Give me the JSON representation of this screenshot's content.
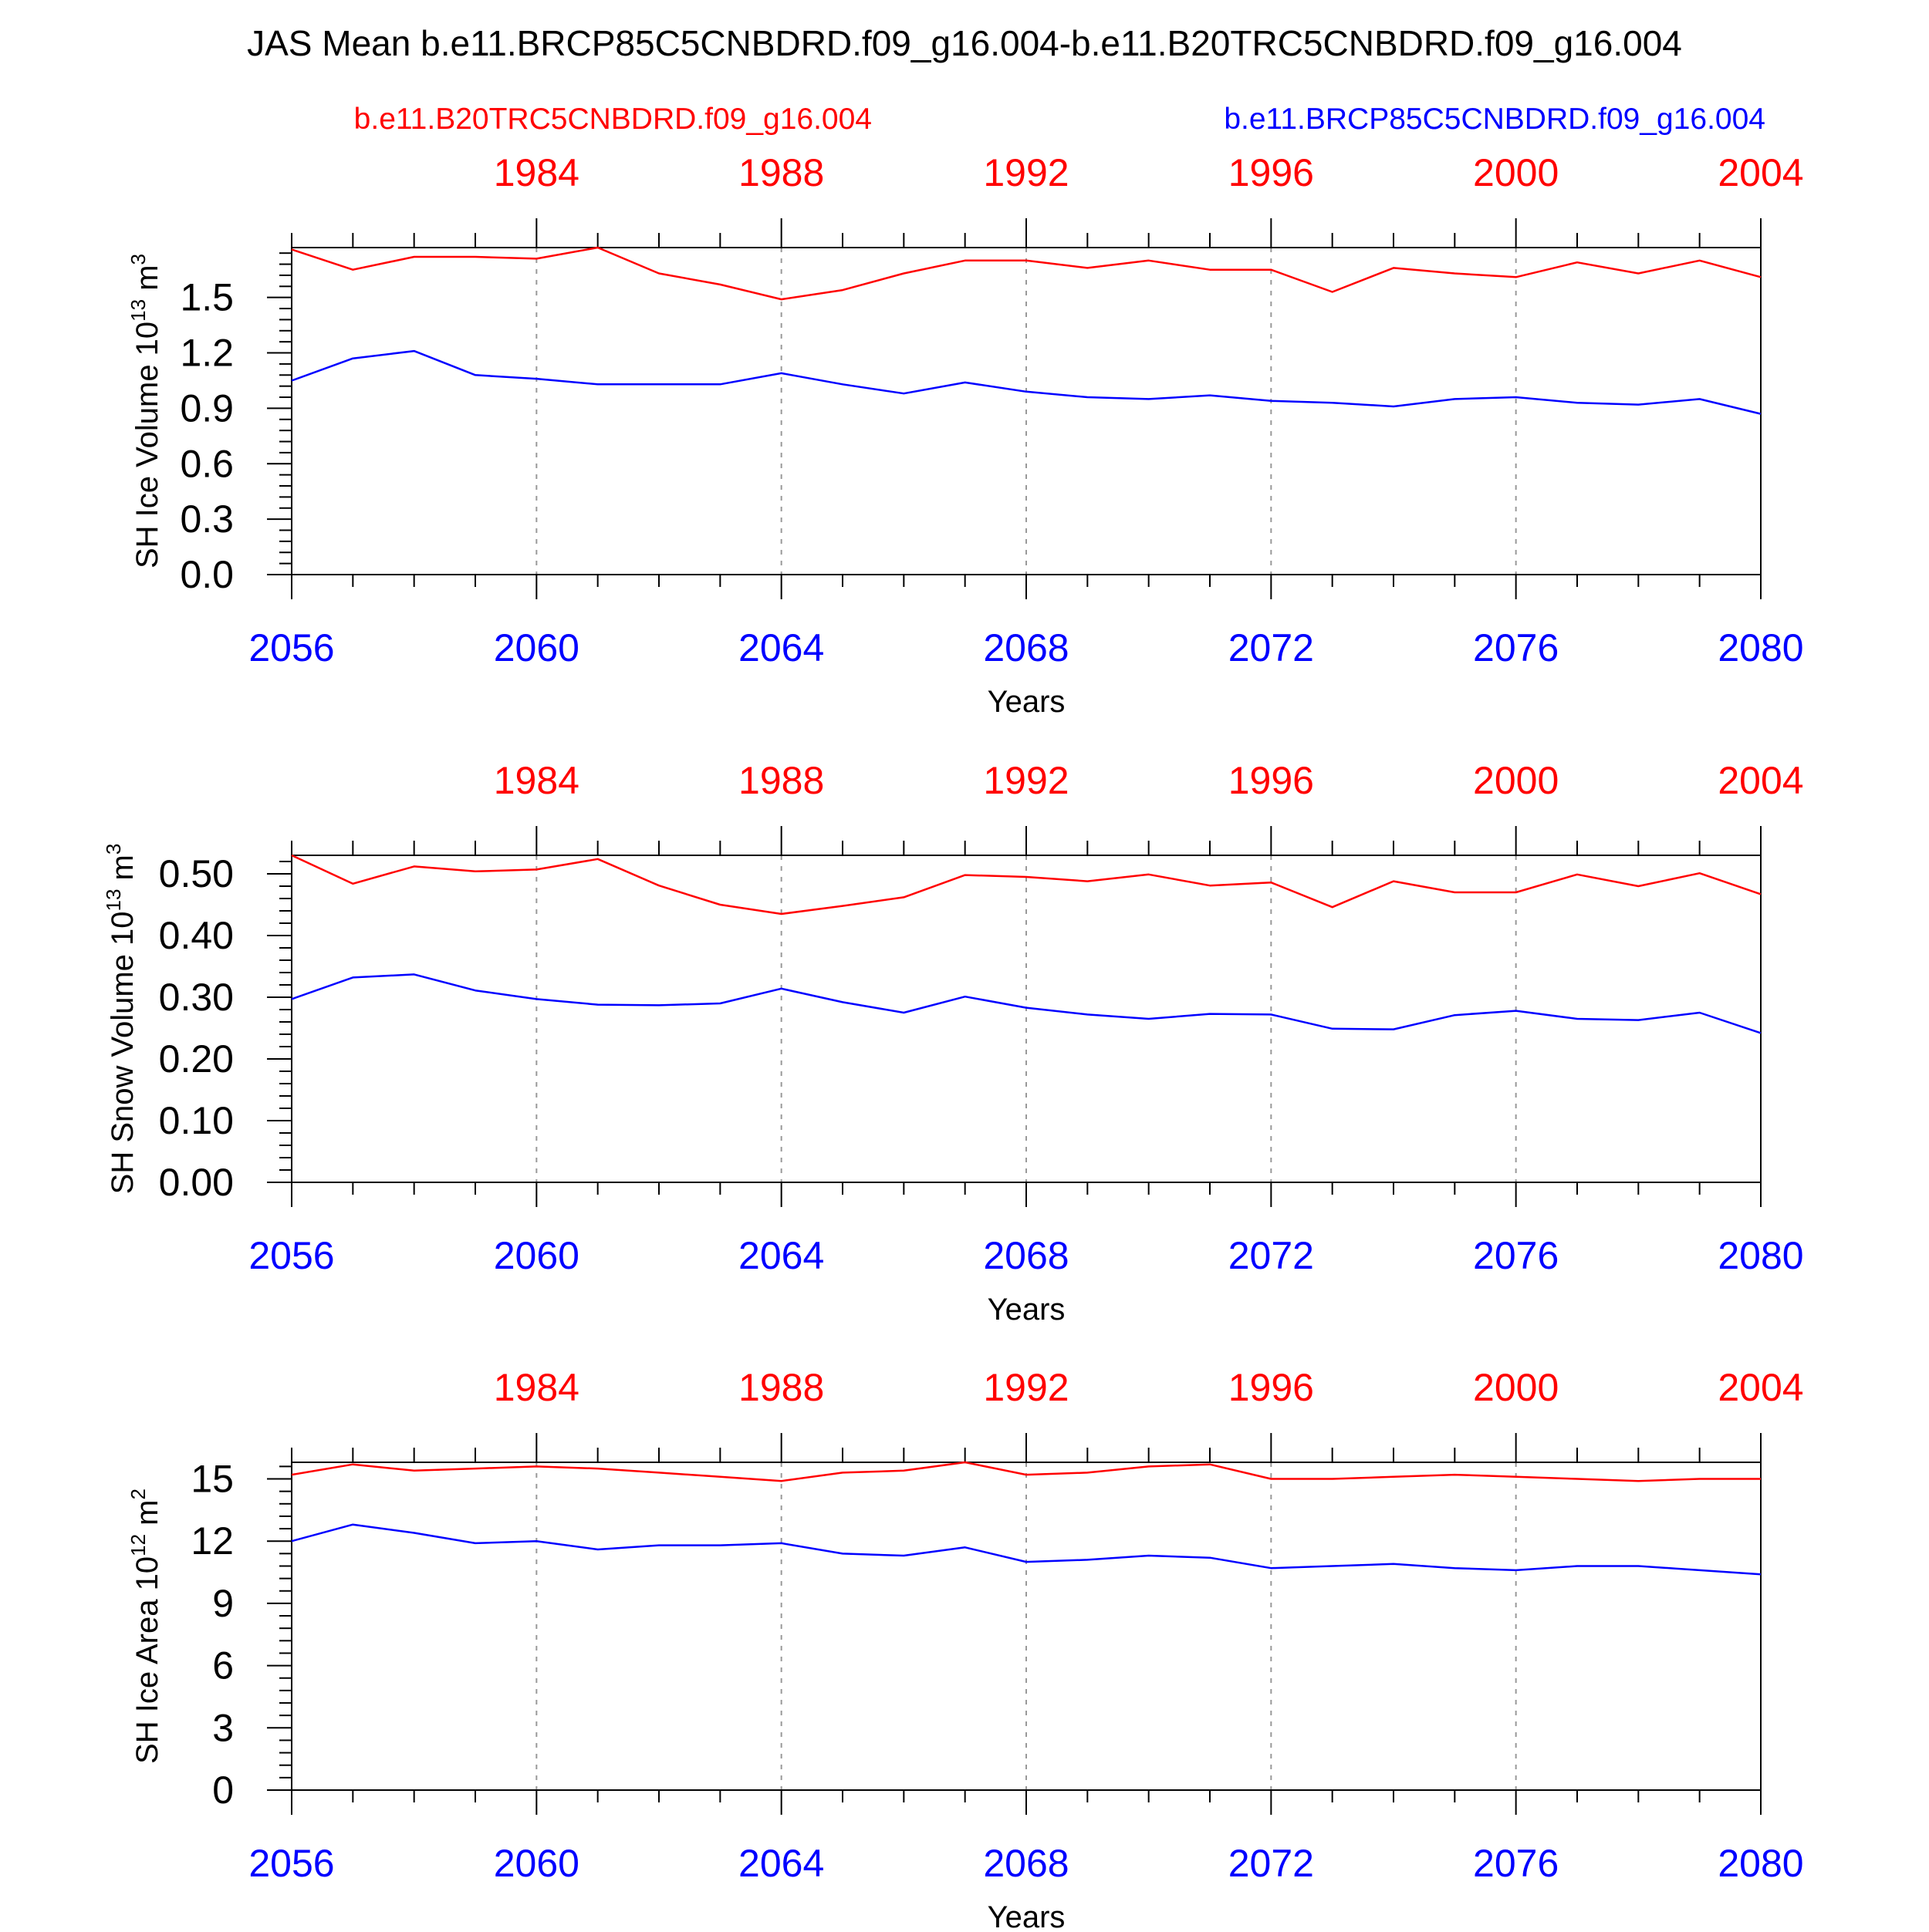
{
  "title": "JAS Mean b.e11.BRCP85C5CNBDRD.f09_g16.004-b.e11.B20TRC5CNBDRD.f09_g16.004",
  "legend": {
    "left": "b.e11.B20TRC5CNBDRD.f09_g16.004",
    "right": "b.e11.BRCP85C5CNBDRD.f09_g16.004"
  },
  "colors": {
    "historical": "#ff0000",
    "projection": "#0000ff",
    "frame": "#000000",
    "grid": "#999999"
  },
  "chart_data": [
    {
      "type": "line",
      "ylabel": "SH Ice Volume 10",
      "ylabel_exp": "13",
      "ylabel_unit": " m",
      "ylabel_unit_exp": "3",
      "xlabel": "Years",
      "ylim": [
        0,
        1.77
      ],
      "yticks": [
        "0.0",
        "0.3",
        "0.6",
        "0.9",
        "1.2",
        "1.5"
      ],
      "ytick_values": [
        0,
        0.3,
        0.6,
        0.9,
        1.2,
        1.5
      ],
      "x_bottom": [
        2056,
        2057,
        2058,
        2059,
        2060,
        2061,
        2062,
        2063,
        2064,
        2065,
        2066,
        2067,
        2068,
        2069,
        2070,
        2071,
        2072,
        2073,
        2074,
        2075,
        2076,
        2077,
        2078,
        2079,
        2080
      ],
      "x_bottom_ticks": [
        "2056",
        "2060",
        "2064",
        "2068",
        "2072",
        "2076",
        "2080"
      ],
      "x_top_ticks": [
        "1984",
        "1988",
        "1992",
        "1996",
        "2000",
        "2004"
      ],
      "series": [
        {
          "values": [
            1.76,
            1.65,
            1.72,
            1.72,
            1.71,
            1.77,
            1.63,
            1.57,
            1.49,
            1.54,
            1.63,
            1.7,
            1.7,
            1.66,
            1.7,
            1.65,
            1.65,
            1.53,
            1.66,
            1.63,
            1.61,
            1.69,
            1.63,
            1.7,
            1.61
          ]
        },
        {
          "values": [
            1.05,
            1.17,
            1.21,
            1.08,
            1.06,
            1.03,
            1.03,
            1.03,
            1.09,
            1.03,
            0.98,
            1.04,
            0.99,
            0.96,
            0.95,
            0.97,
            0.94,
            0.93,
            0.91,
            0.95,
            0.96,
            0.93,
            0.92,
            0.95,
            0.87
          ]
        }
      ]
    },
    {
      "type": "line",
      "ylabel": "SH Snow Volume 10",
      "ylabel_exp": "13",
      "ylabel_unit": " m",
      "ylabel_unit_exp": "3",
      "xlabel": "Years",
      "ylim": [
        0,
        0.53
      ],
      "yticks": [
        "0.00",
        "0.10",
        "0.20",
        "0.30",
        "0.40",
        "0.50"
      ],
      "ytick_values": [
        0,
        0.1,
        0.2,
        0.3,
        0.4,
        0.5
      ],
      "x_bottom": [
        2056,
        2057,
        2058,
        2059,
        2060,
        2061,
        2062,
        2063,
        2064,
        2065,
        2066,
        2067,
        2068,
        2069,
        2070,
        2071,
        2072,
        2073,
        2074,
        2075,
        2076,
        2077,
        2078,
        2079,
        2080
      ],
      "x_bottom_ticks": [
        "2056",
        "2060",
        "2064",
        "2068",
        "2072",
        "2076",
        "2080"
      ],
      "x_top_ticks": [
        "1984",
        "1988",
        "1992",
        "1996",
        "2000",
        "2004"
      ],
      "series": [
        {
          "values": [
            0.53,
            0.484,
            0.512,
            0.504,
            0.507,
            0.524,
            0.481,
            0.45,
            0.435,
            0.448,
            0.462,
            0.498,
            0.495,
            0.488,
            0.499,
            0.481,
            0.486,
            0.446,
            0.488,
            0.47,
            0.47,
            0.499,
            0.48,
            0.501,
            0.467
          ]
        },
        {
          "values": [
            0.297,
            0.332,
            0.337,
            0.311,
            0.297,
            0.288,
            0.287,
            0.29,
            0.314,
            0.292,
            0.275,
            0.301,
            0.283,
            0.272,
            0.265,
            0.273,
            0.272,
            0.249,
            0.248,
            0.271,
            0.278,
            0.265,
            0.263,
            0.275,
            0.242
          ]
        }
      ]
    },
    {
      "type": "line",
      "ylabel": "SH Ice Area 10",
      "ylabel_exp": "12",
      "ylabel_unit": " m",
      "ylabel_unit_exp": "2",
      "xlabel": "Years",
      "ylim": [
        0,
        15.8
      ],
      "yticks": [
        "0",
        "3",
        "6",
        "9",
        "12",
        "15"
      ],
      "ytick_values": [
        0,
        3,
        6,
        9,
        12,
        15
      ],
      "x_bottom": [
        2056,
        2057,
        2058,
        2059,
        2060,
        2061,
        2062,
        2063,
        2064,
        2065,
        2066,
        2067,
        2068,
        2069,
        2070,
        2071,
        2072,
        2073,
        2074,
        2075,
        2076,
        2077,
        2078,
        2079,
        2080
      ],
      "x_bottom_ticks": [
        "2056",
        "2060",
        "2064",
        "2068",
        "2072",
        "2076",
        "2080"
      ],
      "x_top_ticks": [
        "1984",
        "1988",
        "1992",
        "1996",
        "2000",
        "2004"
      ],
      "series": [
        {
          "values": [
            15.2,
            15.7,
            15.4,
            15.5,
            15.6,
            15.5,
            15.3,
            15.1,
            14.9,
            15.3,
            15.4,
            15.8,
            15.2,
            15.3,
            15.6,
            15.7,
            15.0,
            15.0,
            15.1,
            15.2,
            15.1,
            15.0,
            14.9,
            15.0,
            15.0
          ]
        },
        {
          "values": [
            12.0,
            12.8,
            12.4,
            11.9,
            12.0,
            11.6,
            11.8,
            11.8,
            11.9,
            11.4,
            11.3,
            11.7,
            11.0,
            11.1,
            11.3,
            11.2,
            10.7,
            10.8,
            10.9,
            10.7,
            10.6,
            10.8,
            10.8,
            10.6,
            10.4
          ]
        }
      ]
    }
  ]
}
